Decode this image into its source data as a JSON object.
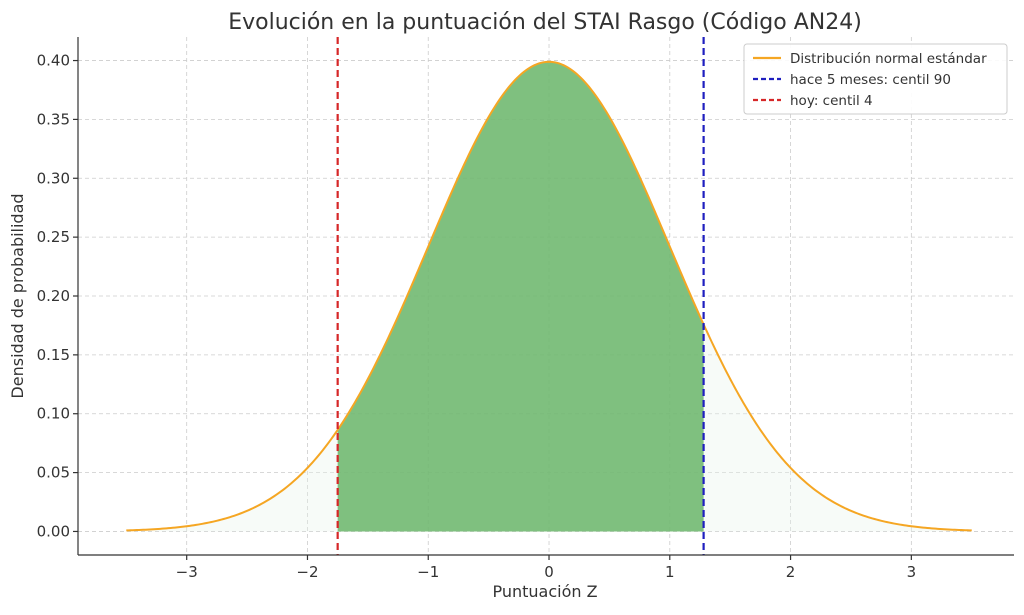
{
  "chart_data": {
    "type": "line",
    "title": "Evolución en la puntuación del STAI Rasgo (Código AN24)",
    "xlabel": "Puntuación Z",
    "ylabel": "Densidad de probabilidad",
    "xlim": [
      -3.9,
      3.85
    ],
    "ylim": [
      -0.02,
      0.42
    ],
    "xticks": [
      -3,
      -2,
      -1,
      0,
      1,
      2,
      3
    ],
    "xtick_labels": [
      "−3",
      "−2",
      "−1",
      "0",
      "1",
      "2",
      "3"
    ],
    "yticks": [
      0.0,
      0.05,
      0.1,
      0.15,
      0.2,
      0.25,
      0.3,
      0.35,
      0.4
    ],
    "ytick_labels": [
      "0.00",
      "0.05",
      "0.10",
      "0.15",
      "0.20",
      "0.25",
      "0.30",
      "0.35",
      "0.40"
    ],
    "grid": true,
    "legend_position": "top-right",
    "series": [
      {
        "name": "Distribución normal estándar",
        "kind": "curve",
        "function": "standard-normal-pdf",
        "x_range": [
          -3.5,
          3.5
        ],
        "color": "#f5a623"
      },
      {
        "name": "hace 5 meses: centil 90",
        "kind": "vline",
        "x": 1.28,
        "color": "#1f1fbf"
      },
      {
        "name": "hoy: centil 4",
        "kind": "vline",
        "x": -1.75,
        "color": "#d62728"
      }
    ],
    "shaded_region": {
      "from_x": -1.75,
      "to_x": 1.28,
      "color": "#6ab56a"
    },
    "background_fill": {
      "from_x": -3.5,
      "to_x": 3.5,
      "color": "#e9f3ec"
    }
  }
}
